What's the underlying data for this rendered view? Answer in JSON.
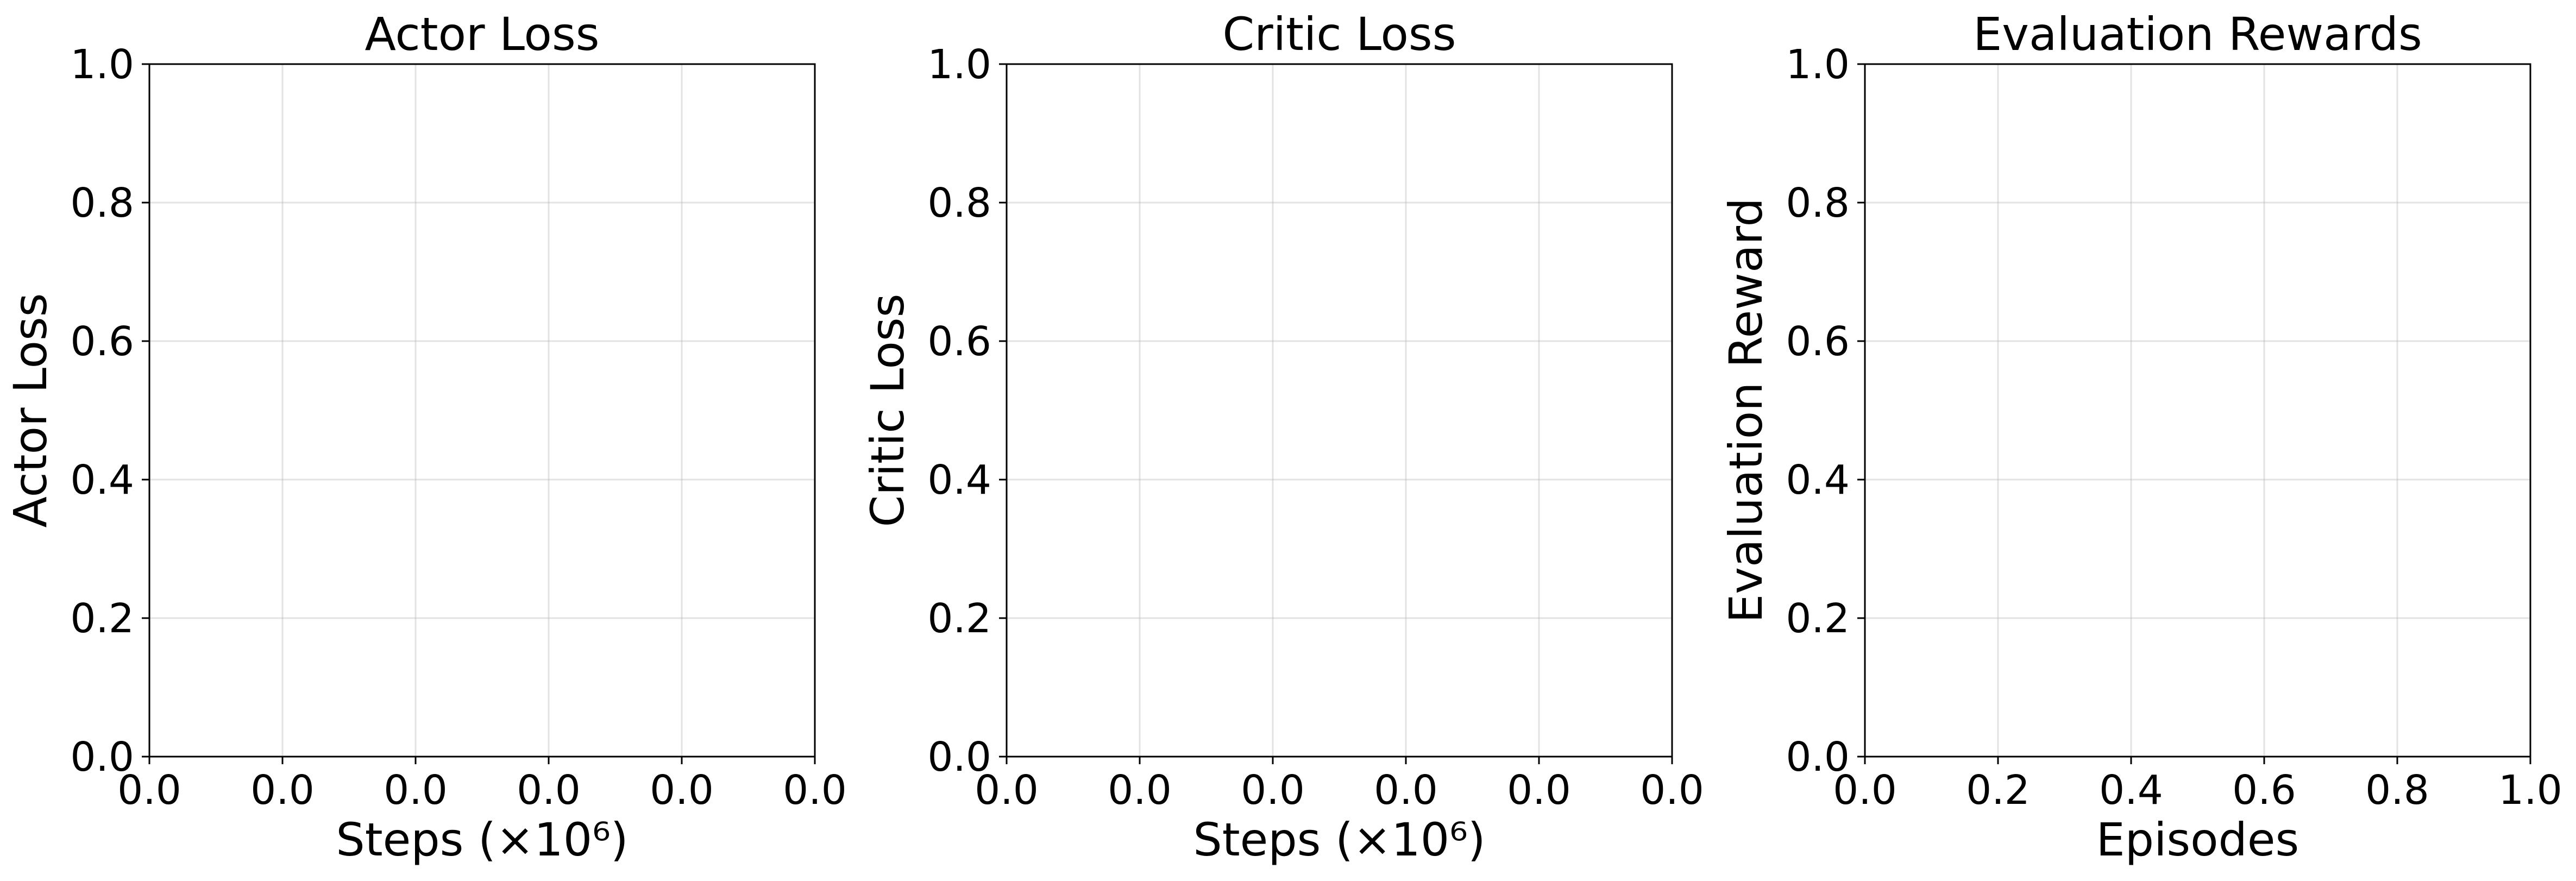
{
  "chart_data": [
    {
      "type": "line",
      "title": "Actor Loss",
      "xlabel": "Steps (×10⁶)",
      "ylabel": "Actor Loss",
      "xticks": [
        "0.0",
        "0.0",
        "0.0",
        "0.0",
        "0.0",
        "0.0"
      ],
      "yticks": [
        "0.0",
        "0.2",
        "0.4",
        "0.6",
        "0.8",
        "1.0"
      ],
      "ylim": [
        0,
        1
      ],
      "grid": true,
      "series": []
    },
    {
      "type": "line",
      "title": "Critic Loss",
      "xlabel": "Steps (×10⁶)",
      "ylabel": "Critic Loss",
      "xticks": [
        "0.0",
        "0.0",
        "0.0",
        "0.0",
        "0.0",
        "0.0"
      ],
      "yticks": [
        "0.0",
        "0.2",
        "0.4",
        "0.6",
        "0.8",
        "1.0"
      ],
      "ylim": [
        0,
        1
      ],
      "grid": true,
      "series": []
    },
    {
      "type": "line",
      "title": "Evaluation Rewards",
      "xlabel": "Episodes",
      "ylabel": "Evaluation Reward",
      "xticks": [
        "0.0",
        "0.2",
        "0.4",
        "0.6",
        "0.8",
        "1.0"
      ],
      "yticks": [
        "0.0",
        "0.2",
        "0.4",
        "0.6",
        "0.8",
        "1.0"
      ],
      "xlim": [
        0,
        1
      ],
      "ylim": [
        0,
        1
      ],
      "grid": true,
      "series": []
    }
  ]
}
